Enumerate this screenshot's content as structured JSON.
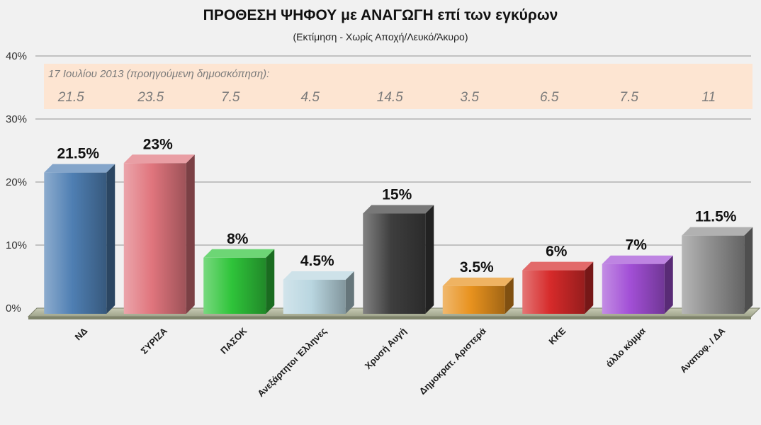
{
  "chart_data": {
    "type": "bar",
    "title": "ΠΡΟΘΕΣΗ ΨΗΦΟΥ με ΑΝΑΓΩΓΗ επί των εγκύρων",
    "subtitle": "(Εκτίμηση  -  Χωρίς Αποχή/Λευκό/Άκυρο)",
    "categories": [
      "ΝΔ",
      "ΣΥΡΙΖΑ",
      "ΠΑΣΟΚ",
      "Ανεξάρτητοι Έλληνες",
      "Χρυσή Αυγή",
      "Δημοκρατ. Αριστερά",
      "ΚΚΕ",
      "άλλο κόμμα",
      "Αναποφ. / ΔΑ"
    ],
    "values": [
      21.5,
      23,
      8,
      4.5,
      15,
      3.5,
      6,
      7,
      11.5
    ],
    "value_labels": [
      "21.5%",
      "23%",
      "8%",
      "4.5%",
      "15%",
      "3.5%",
      "6%",
      "7%",
      "11.5%"
    ],
    "previous_label": "17 Ιουλίου 2013  (προηγούμενη δημοσκόπηση):",
    "previous_values": [
      "21.5",
      "23.5",
      "7.5",
      "4.5",
      "14.5",
      "3.5",
      "6.5",
      "7.5",
      "11"
    ],
    "y_tick_labels": [
      "0%",
      "10%",
      "20%",
      "30%",
      "40%"
    ],
    "ylim": [
      0,
      40
    ],
    "grid": true,
    "colors": [
      "#4f7fb3",
      "#e0757d",
      "#2fc43a",
      "#b9d6e0",
      "#3e3e3e",
      "#e8921e",
      "#d62a2a",
      "#a24fd6",
      "#8f8f8f"
    ],
    "previous_band_color": "#fde5d2"
  }
}
